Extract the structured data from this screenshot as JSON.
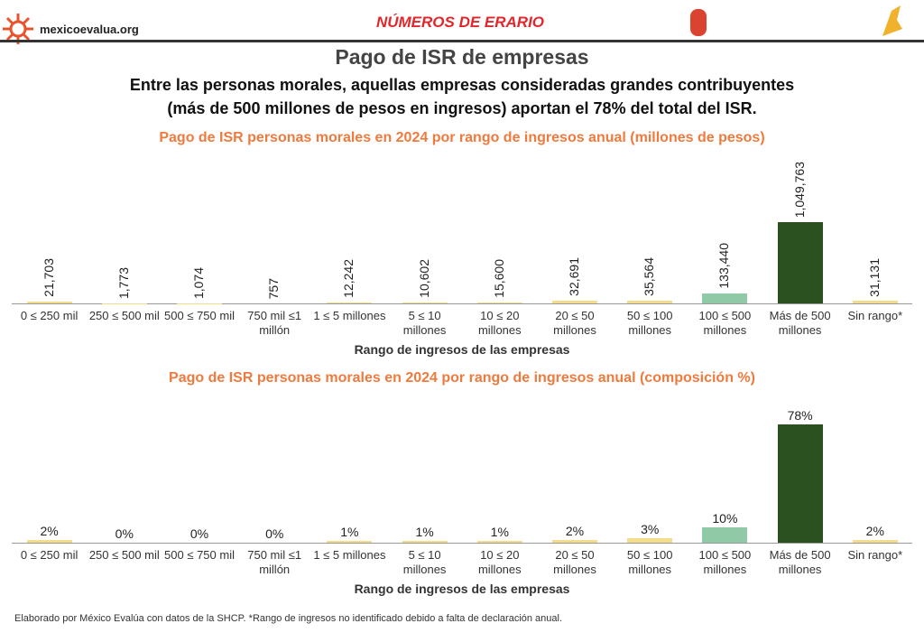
{
  "header": {
    "site": "mexicoevalua.org",
    "logo": "NÚMEROS DE ERARIO",
    "title": "Pago de ISR de empresas",
    "subtitle": "Entre las personas morales, aquellas empresas consideradas grandes contribuyentes (más de 500 millones de pesos en ingresos) aportan el 78% del total del ISR."
  },
  "chart_data": [
    {
      "type": "bar",
      "title": "Pago de ISR personas morales en 2024 por rango de ingresos anual (millones de pesos)",
      "x_label": "Rango de ingresos de las empresas",
      "categories": [
        "0 ≤ 250 mil",
        "250 ≤ 500 mil",
        "500 ≤ 750 mil",
        "750 mil ≤1 millón",
        "1 ≤ 5 millones",
        "5 ≤ 10 millones",
        "10 ≤ 20 millones",
        "20 ≤ 50 millones",
        "50 ≤ 100 millones",
        "100 ≤ 500 millones",
        "Más de 500 millones",
        "Sin rango*"
      ],
      "values": [
        21703,
        1773,
        1074,
        757,
        12242,
        10602,
        15600,
        32691,
        35564,
        133440,
        1049763,
        31131
      ],
      "value_labels": [
        "21,703",
        "1,773",
        "1,074",
        "757",
        "12,242",
        "10,602",
        "15,600",
        "32,691",
        "35,564",
        "133,440",
        "1,049,763",
        "31,131"
      ],
      "value_label_orientation": "vertical",
      "colors": [
        "#f3dc8c",
        "#f3dc8c",
        "#f3dc8c",
        "#f3dc8c",
        "#f3dc8c",
        "#f3dc8c",
        "#f3dc8c",
        "#f3dc8c",
        "#f3dc8c",
        "#8fc9a6",
        "#2b5121",
        "#f3dc8c"
      ]
    },
    {
      "type": "bar",
      "title": "Pago de ISR personas morales en 2024 por rango de ingresos anual  (composición %)",
      "x_label": "Rango de ingresos de las empresas",
      "categories": [
        "0 ≤ 250 mil",
        "250 ≤ 500 mil",
        "500 ≤ 750 mil",
        "750 mil ≤1 millón",
        "1 ≤ 5 millones",
        "5 ≤ 10 millones",
        "10 ≤ 20 millones",
        "20 ≤ 50 millones",
        "50 ≤ 100 millones",
        "100 ≤ 500 millones",
        "Más de 500 millones",
        "Sin rango*"
      ],
      "values": [
        2,
        0,
        0,
        0,
        1,
        1,
        1,
        2,
        3,
        10,
        78,
        2
      ],
      "value_labels": [
        "2%",
        "0%",
        "0%",
        "0%",
        "1%",
        "1%",
        "1%",
        "2%",
        "3%",
        "10%",
        "78%",
        "2%"
      ],
      "value_label_orientation": "horizontal",
      "colors": [
        "#f3dc8c",
        "#f3dc8c",
        "#f3dc8c",
        "#f3dc8c",
        "#f3dc8c",
        "#f3dc8c",
        "#f3dc8c",
        "#f3dc8c",
        "#f3dc8c",
        "#8fc9a6",
        "#2b5121",
        "#f3dc8c"
      ]
    }
  ],
  "footnote": "Elaborado por México Evalúa con datos de la SHCP. *Rango de ingresos no identificado debido a falta de declaración anual."
}
